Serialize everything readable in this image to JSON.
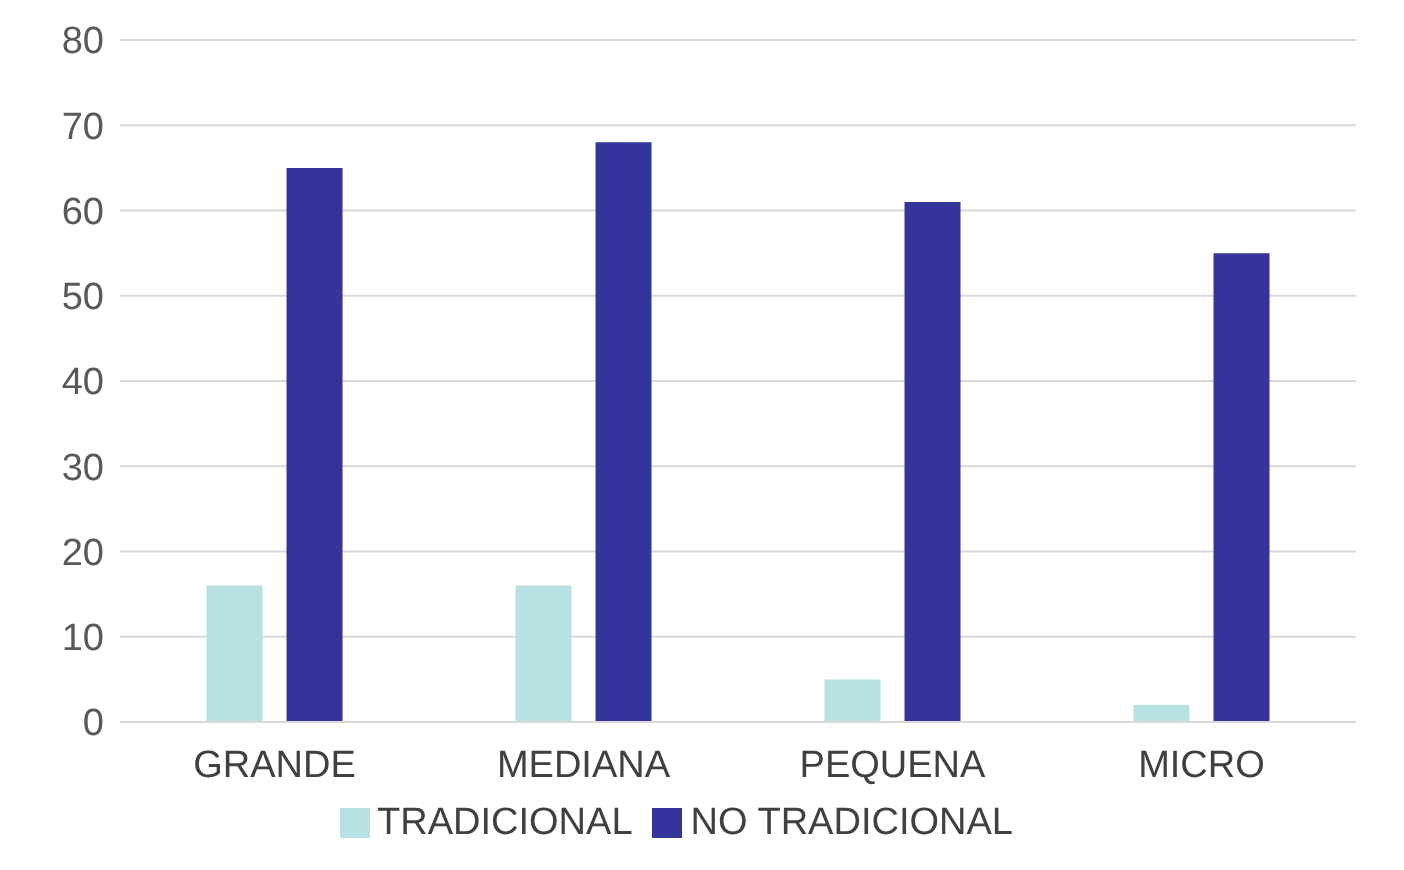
{
  "chart_data": {
    "type": "bar",
    "categories": [
      "GRANDE",
      "MEDIANA",
      "PEQUENA",
      "MICRO"
    ],
    "series": [
      {
        "name": "TRADICIONAL",
        "color": "#b7e1e3",
        "values": [
          16,
          16,
          5,
          2
        ]
      },
      {
        "name": "NO TRADICIONAL",
        "color": "#34349a",
        "values": [
          65,
          68,
          61,
          55
        ]
      }
    ],
    "ylim": [
      0,
      80
    ],
    "yticks": [
      0,
      10,
      20,
      30,
      40,
      50,
      60,
      70,
      80
    ],
    "grid": "y",
    "legend": "bottom"
  }
}
